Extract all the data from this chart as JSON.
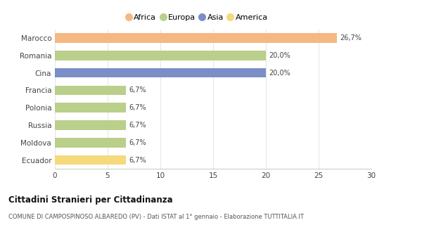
{
  "categories": [
    "Marocco",
    "Romania",
    "Cina",
    "Francia",
    "Polonia",
    "Russia",
    "Moldova",
    "Ecuador"
  ],
  "values": [
    26.7,
    20.0,
    20.0,
    6.7,
    6.7,
    6.7,
    6.7,
    6.7
  ],
  "colors": [
    "#F5B882",
    "#BACF8A",
    "#7B8EC8",
    "#BACF8A",
    "#BACF8A",
    "#BACF8A",
    "#BACF8A",
    "#F5D97A"
  ],
  "labels": [
    "26,7%",
    "20,0%",
    "20,0%",
    "6,7%",
    "6,7%",
    "6,7%",
    "6,7%",
    "6,7%"
  ],
  "legend_items": [
    {
      "label": "Africa",
      "color": "#F5B882"
    },
    {
      "label": "Europa",
      "color": "#BACF8A"
    },
    {
      "label": "Asia",
      "color": "#7B8EC8"
    },
    {
      "label": "America",
      "color": "#F5D97A"
    }
  ],
  "xlim": [
    0,
    30
  ],
  "xticks": [
    0,
    5,
    10,
    15,
    20,
    25,
    30
  ],
  "title": "Cittadini Stranieri per Cittadinanza",
  "subtitle": "COMUNE DI CAMPOSPINOSO ALBAREDO (PV) - Dati ISTAT al 1° gennaio - Elaborazione TUTTITALIA.IT",
  "background_color": "#ffffff",
  "bar_height": 0.55
}
